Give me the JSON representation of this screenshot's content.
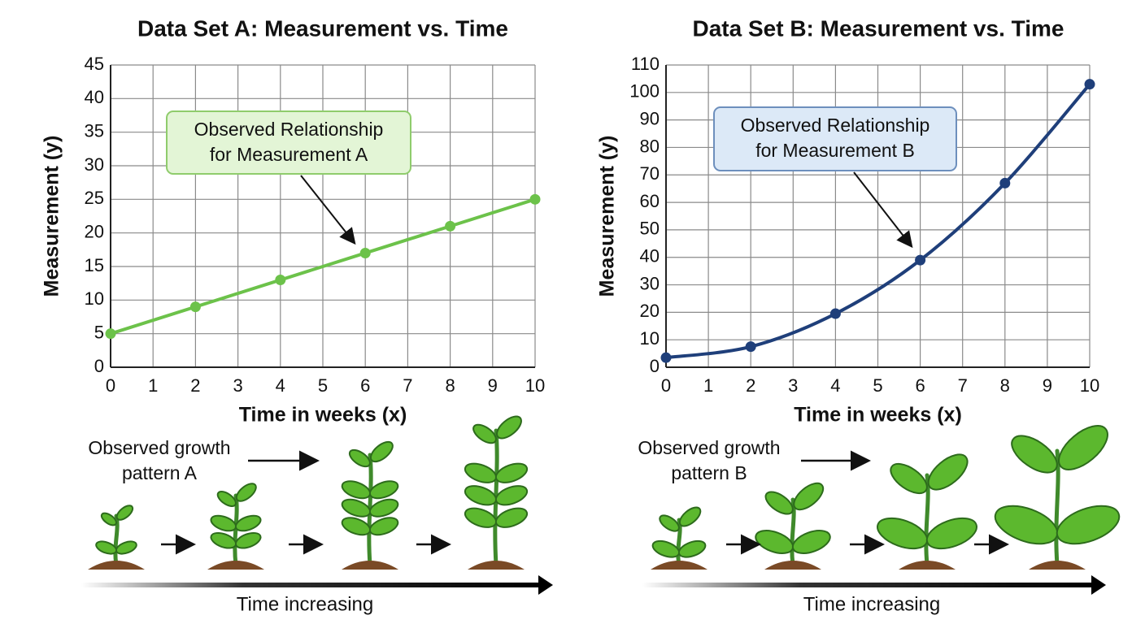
{
  "chart_data": [
    {
      "type": "line",
      "title": "Data Set A: Measurement vs. Time",
      "x_label": "Time in weeks (x)",
      "y_label": "Measurement (y)",
      "x": [
        0,
        2,
        4,
        6,
        8,
        10
      ],
      "values": [
        5,
        9,
        13,
        17,
        21,
        25
      ],
      "color": "#6cc24a",
      "smooth": false,
      "xlim": [
        0,
        10
      ],
      "xticks": [
        0,
        1,
        2,
        3,
        4,
        5,
        6,
        7,
        8,
        9,
        10
      ],
      "ylim": [
        0,
        45
      ],
      "yticks": [
        0,
        5,
        10,
        15,
        20,
        25,
        30,
        35,
        40,
        45
      ],
      "grid": true,
      "annotation": [
        "Observed Relationship",
        "for Measurement A"
      ],
      "growth_label": [
        "Observed growth",
        "pattern A"
      ],
      "timeline_label": "Time increasing"
    },
    {
      "type": "line",
      "title": "Data Set B: Measurement vs. Time",
      "x_label": "Time in weeks (x)",
      "y_label": "Measurement (y)",
      "x": [
        0,
        2,
        4,
        6,
        8,
        10
      ],
      "values": [
        3.5,
        7.5,
        19.5,
        39,
        67,
        103
      ],
      "color": "#1f3f7a",
      "smooth": true,
      "xlim": [
        0,
        10
      ],
      "xticks": [
        0,
        1,
        2,
        3,
        4,
        5,
        6,
        7,
        8,
        9,
        10
      ],
      "ylim": [
        0,
        110
      ],
      "yticks": [
        0,
        10,
        20,
        30,
        40,
        50,
        60,
        70,
        80,
        90,
        100,
        110
      ],
      "grid": true,
      "annotation": [
        "Observed Relationship",
        "for Measurement B"
      ],
      "growth_label": [
        "Observed growth",
        "pattern B"
      ],
      "timeline_label": "Time increasing"
    }
  ]
}
